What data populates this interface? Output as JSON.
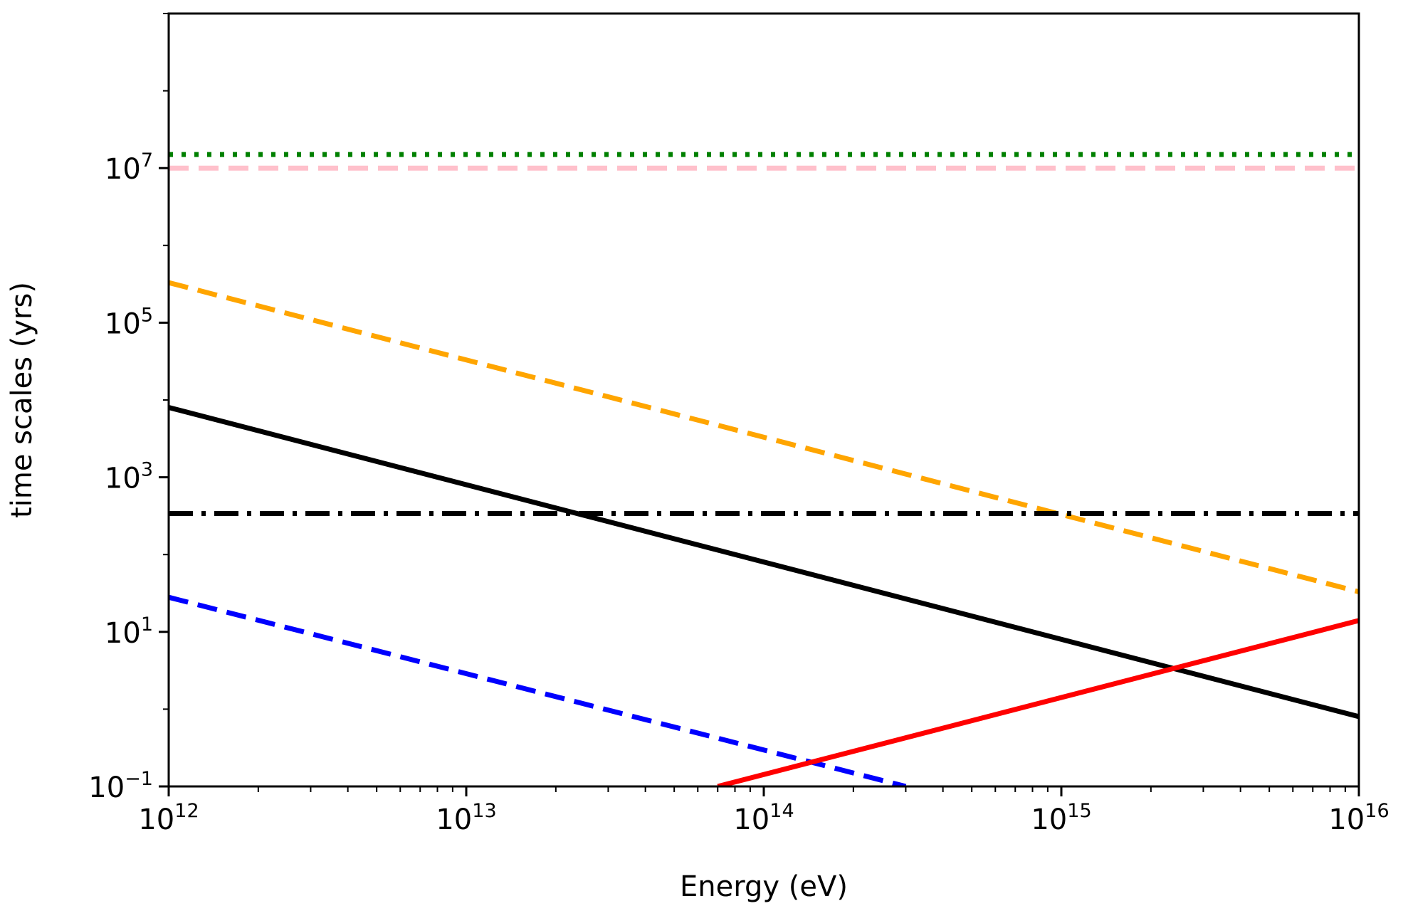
{
  "chart_data": {
    "type": "line",
    "title": "",
    "xlabel": "Energy (eV)",
    "ylabel": "time scales (yrs)",
    "xscale": "log",
    "yscale": "log",
    "xlim": [
      1000000000000.0,
      1e+16
    ],
    "ylim": [
      0.1,
      1000000000.0
    ],
    "grid": false,
    "legend": "none",
    "xticks": [
      {
        "value": 1000000000000.0,
        "base": "10",
        "exp": "12"
      },
      {
        "value": 10000000000000.0,
        "base": "10",
        "exp": "13"
      },
      {
        "value": 100000000000000.0,
        "base": "10",
        "exp": "14"
      },
      {
        "value": 1000000000000000.0,
        "base": "10",
        "exp": "15"
      },
      {
        "value": 1e+16,
        "base": "10",
        "exp": "16"
      }
    ],
    "yticks": [
      {
        "value": 0.1,
        "base": "10",
        "exp": "−1"
      },
      {
        "value": 10,
        "base": "10",
        "exp": "1"
      },
      {
        "value": 1000,
        "base": "10",
        "exp": "3"
      },
      {
        "value": 100000,
        "base": "10",
        "exp": "5"
      },
      {
        "value": 10000000,
        "base": "10",
        "exp": "7"
      }
    ],
    "series": [
      {
        "name": "green-dotted",
        "color": "#008000",
        "style": "dotted",
        "x": [
          1000000000000.0,
          1e+16
        ],
        "y": [
          15000000.0,
          15000000.0
        ]
      },
      {
        "name": "pink-dashed",
        "color": "#ffc0cb",
        "style": "dashed",
        "x": [
          1000000000000.0,
          1e+16
        ],
        "y": [
          10000000.0,
          10000000.0
        ]
      },
      {
        "name": "orange-dashed",
        "color": "#ffa500",
        "style": "dashed",
        "x": [
          1000000000000.0,
          1e+16
        ],
        "y": [
          330000.0,
          33
        ]
      },
      {
        "name": "black-solid",
        "color": "#000000",
        "style": "solid",
        "x": [
          1000000000000.0,
          1e+16
        ],
        "y": [
          8000,
          0.8
        ]
      },
      {
        "name": "black-dashdot",
        "color": "#000000",
        "style": "dashdot",
        "x": [
          1000000000000.0,
          1e+16
        ],
        "y": [
          340,
          340
        ]
      },
      {
        "name": "blue-dashed",
        "color": "#0000ff",
        "style": "dashed",
        "x": [
          1000000000000.0,
          300000000000000.0
        ],
        "y": [
          28,
          0.1
        ]
      },
      {
        "name": "red-solid",
        "color": "#ff0000",
        "style": "solid",
        "x": [
          70000000000000.0,
          1e+16
        ],
        "y": [
          0.1,
          14
        ]
      }
    ]
  }
}
